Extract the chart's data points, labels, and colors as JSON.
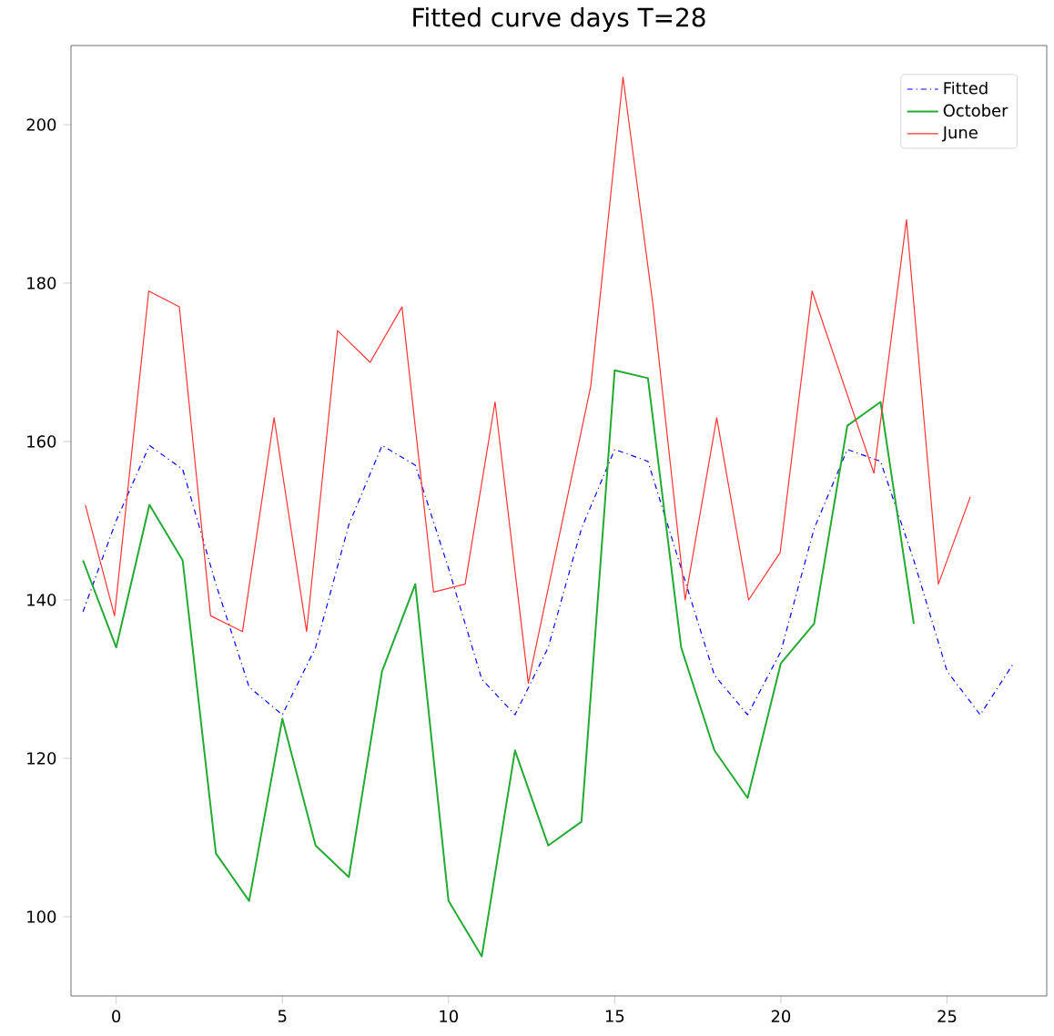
{
  "chart_data": {
    "type": "line",
    "title": "Fitted curve days T=28",
    "xlim": [
      -1.36,
      28
    ],
    "ylim": [
      90,
      210
    ],
    "xticks": [
      0,
      5,
      10,
      15,
      20,
      25
    ],
    "yticks": [
      100,
      120,
      140,
      160,
      180,
      200
    ],
    "grid": false,
    "legend": "top right",
    "marker": "none",
    "series": [
      {
        "name": "Fitted",
        "color": "#0000ff",
        "line_style": "dashdot",
        "x": [
          -1,
          0,
          1,
          2,
          3,
          4,
          5,
          6,
          7,
          8,
          9,
          10,
          11,
          12,
          13,
          14,
          15,
          16,
          17,
          18,
          19,
          20,
          21,
          22,
          23,
          24,
          25,
          26,
          27
        ],
        "values": [
          138.5,
          150,
          159.5,
          156.5,
          142,
          129,
          125.5,
          134,
          149.5,
          159.5,
          157,
          144,
          130,
          125.5,
          134,
          149,
          159,
          157.5,
          144,
          130.5,
          125.5,
          133.5,
          149,
          159,
          157.5,
          145,
          131,
          125.5,
          132
        ]
      },
      {
        "name": "October",
        "color": "#22aa33",
        "line_style": "solid",
        "x": [
          -1,
          0,
          1,
          2,
          3,
          4,
          5,
          6,
          7,
          8,
          9,
          10,
          11,
          12,
          13,
          14,
          15,
          16,
          17,
          18,
          19,
          20,
          21,
          22,
          23,
          24
        ],
        "values": [
          145,
          134,
          152,
          145,
          108,
          102,
          125,
          109,
          105,
          131,
          142,
          102,
          95,
          121,
          109,
          112,
          169,
          168,
          134,
          121,
          115,
          132,
          137,
          162,
          165,
          137
        ]
      },
      {
        "name": "June",
        "color": "#ff3333",
        "line_style": "solid",
        "x": [
          -0.93,
          -0.05,
          0.98,
          1.9,
          2.84,
          3.8,
          4.75,
          5.73,
          6.66,
          7.64,
          8.6,
          9.55,
          10.5,
          11.4,
          12.4,
          14.28,
          15.25,
          16.16,
          17.12,
          18.07,
          19.03,
          19.98,
          20.94,
          22.8,
          23.78,
          24.74,
          25.7
        ],
        "values": [
          152,
          138,
          179,
          177,
          138,
          136,
          163,
          136,
          174,
          170,
          177,
          141,
          142,
          165,
          129.5,
          167,
          206,
          177,
          140,
          163,
          140,
          146,
          179,
          156,
          188,
          142,
          153
        ]
      }
    ]
  }
}
